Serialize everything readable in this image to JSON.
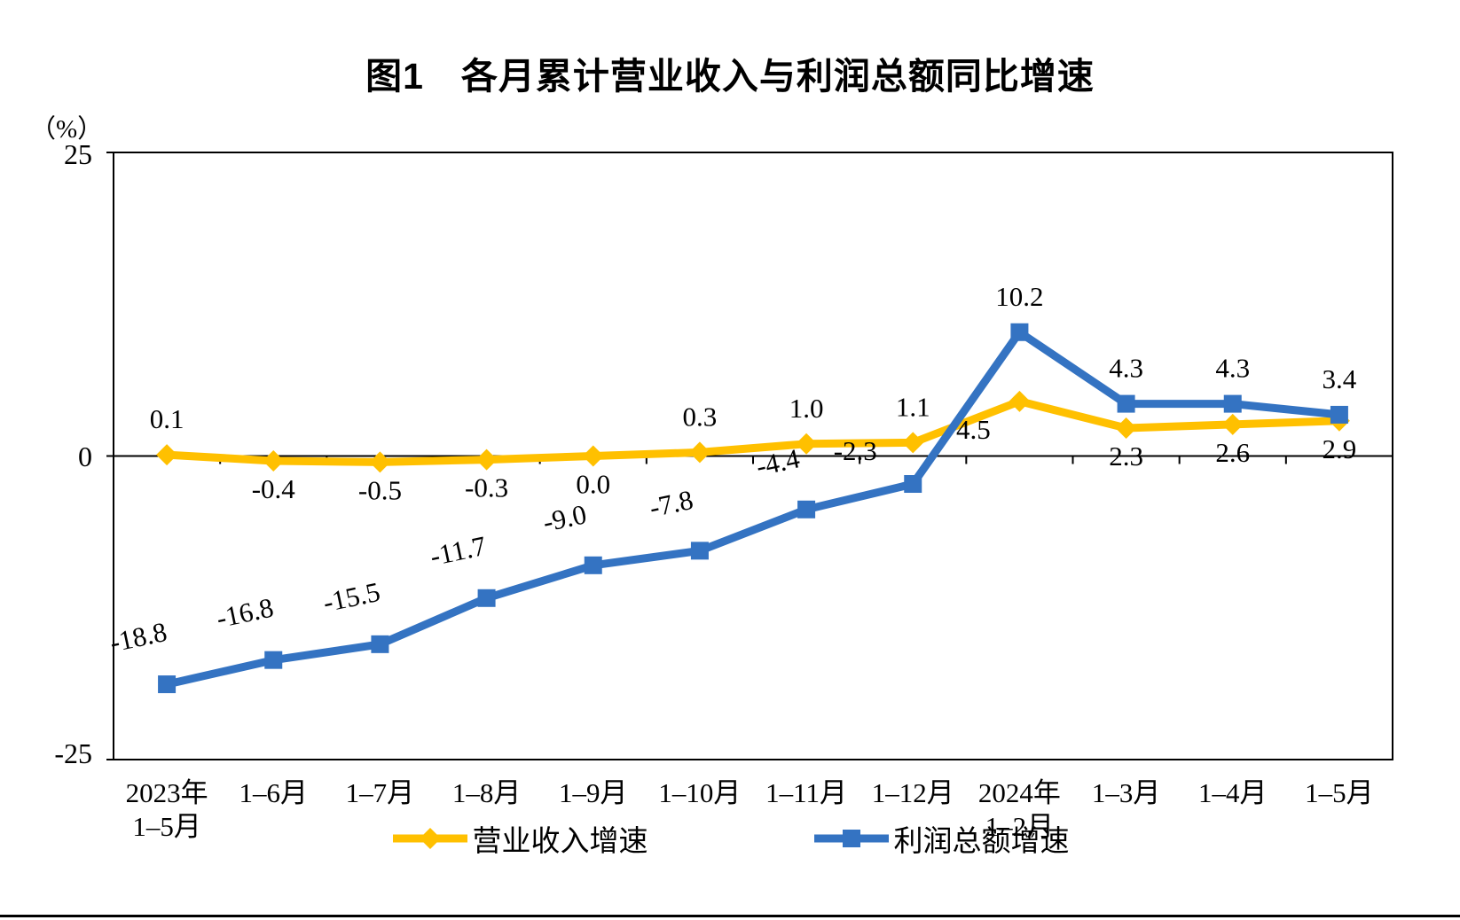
{
  "title": "图1　各月累计营业收入与利润总额同比增速",
  "y_axis": {
    "unit": "（%）",
    "ticks": [
      "25",
      "0",
      "-25"
    ],
    "tick_values": [
      25,
      0,
      -25
    ]
  },
  "chart_data": {
    "type": "line",
    "title": "图1　各月累计营业收入与利润总额同比增速",
    "ylabel": "（%）",
    "xlabel": "",
    "ylim": [
      -25,
      25
    ],
    "grid": false,
    "legend_position": "bottom",
    "categories": [
      "2023年\n1–5月",
      "1–6月",
      "1–7月",
      "1–8月",
      "1–9月",
      "1–10月",
      "1–11月",
      "1–12月",
      "2024年\n1–2月",
      "1–3月",
      "1–4月",
      "1–5月"
    ],
    "series": [
      {
        "id": "revenue",
        "name": "营业收入增速",
        "color": "#FFC000",
        "marker": "diamond",
        "values": [
          0.1,
          -0.4,
          -0.5,
          -0.3,
          0.0,
          0.3,
          1.0,
          1.1,
          4.5,
          2.3,
          2.6,
          2.9
        ],
        "labels": [
          "0.1",
          "-0.4",
          "-0.5",
          "-0.3",
          "0.0",
          "0.3",
          "1.0",
          "1.1",
          "4.5",
          "2.3",
          "2.6",
          "2.9"
        ],
        "label_pos": [
          "above",
          "below",
          "below",
          "below",
          "below",
          "above",
          "above",
          "above",
          "below-left",
          "below",
          "below",
          "below"
        ]
      },
      {
        "id": "profit",
        "name": "利润总额增速",
        "color": "#3473C2",
        "marker": "square",
        "values": [
          -18.8,
          -16.8,
          -15.5,
          -11.7,
          -9.0,
          -7.8,
          -4.4,
          -2.3,
          10.2,
          4.3,
          4.3,
          3.4
        ],
        "labels": [
          "-18.8",
          "-16.8",
          "-15.5",
          "-11.7",
          "-9.0",
          "-7.8",
          "-4.4",
          "-2.3",
          "10.2",
          "4.3",
          "4.3",
          "3.4"
        ],
        "label_pos": [
          "above-rot",
          "above-rot",
          "above-rot",
          "above-rot",
          "above-rot",
          "above-rot",
          "above-rot",
          "above-left",
          "above",
          "above",
          "above",
          "above"
        ]
      }
    ]
  }
}
